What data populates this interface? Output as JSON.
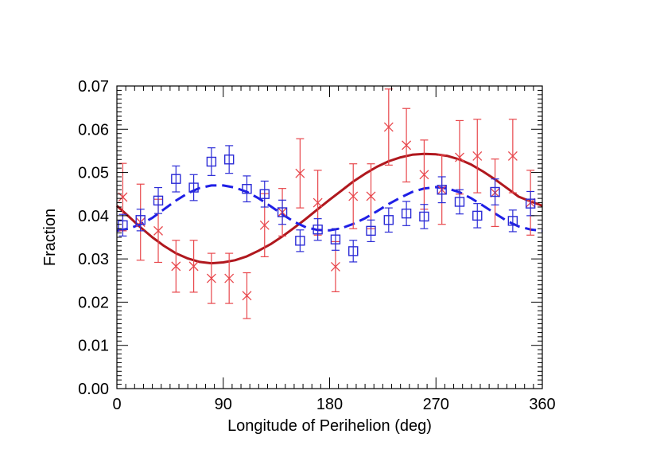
{
  "chart_data": {
    "type": "scatter",
    "title": "",
    "xlabel": "Longitude of Perihelion (deg)",
    "ylabel": "Fraction",
    "xlim": [
      0,
      360
    ],
    "ylim": [
      0,
      0.07
    ],
    "x_ticks": [
      0,
      90,
      180,
      270,
      360
    ],
    "y_ticks": [
      0.0,
      0.01,
      0.02,
      0.03,
      0.04,
      0.05,
      0.06,
      0.07
    ],
    "x_tick_labels": [
      "0",
      "90",
      "180",
      "270",
      "360"
    ],
    "y_tick_labels": [
      "0.00",
      "0.01",
      "0.02",
      "0.03",
      "0.04",
      "0.05",
      "0.06",
      "0.07"
    ],
    "grid": false,
    "colors": {
      "red_points": "#e8474c",
      "blue_points": "#2b2bd6",
      "red_curve": "#b0181e",
      "blue_curve": "#1f1fe6"
    },
    "series": [
      {
        "marker": "x",
        "color": "#e8474c",
        "points": [
          {
            "x": 5,
            "y": 0.0443,
            "err": 0.0078
          },
          {
            "x": 20,
            "y": 0.0385,
            "err": 0.0088
          },
          {
            "x": 35,
            "y": 0.0365,
            "err": 0.0073
          },
          {
            "x": 50,
            "y": 0.0283,
            "err": 0.006
          },
          {
            "x": 65,
            "y": 0.0283,
            "err": 0.006
          },
          {
            "x": 80,
            "y": 0.0255,
            "err": 0.0058
          },
          {
            "x": 95,
            "y": 0.0255,
            "err": 0.0058
          },
          {
            "x": 110,
            "y": 0.0215,
            "err": 0.0053
          },
          {
            "x": 125,
            "y": 0.0378,
            "err": 0.0073
          },
          {
            "x": 140,
            "y": 0.0408,
            "err": 0.0055
          },
          {
            "x": 155,
            "y": 0.0498,
            "err": 0.008
          },
          {
            "x": 170,
            "y": 0.043,
            "err": 0.0075
          },
          {
            "x": 185,
            "y": 0.0282,
            "err": 0.0058
          },
          {
            "x": 200,
            "y": 0.0445,
            "err": 0.0075
          },
          {
            "x": 215,
            "y": 0.0445,
            "err": 0.0075
          },
          {
            "x": 230,
            "y": 0.0605,
            "err": 0.0088
          },
          {
            "x": 245,
            "y": 0.0563,
            "err": 0.0085
          },
          {
            "x": 260,
            "y": 0.0495,
            "err": 0.008
          },
          {
            "x": 275,
            "y": 0.046,
            "err": 0.008
          },
          {
            "x": 290,
            "y": 0.0535,
            "err": 0.0085
          },
          {
            "x": 305,
            "y": 0.0538,
            "err": 0.0085
          },
          {
            "x": 320,
            "y": 0.0453,
            "err": 0.0078
          },
          {
            "x": 335,
            "y": 0.0538,
            "err": 0.0085
          },
          {
            "x": 350,
            "y": 0.043,
            "err": 0.0075
          }
        ]
      },
      {
        "marker": "square",
        "color": "#2b2bd6",
        "points": [
          {
            "x": 5,
            "y": 0.0378,
            "err": 0.0025
          },
          {
            "x": 20,
            "y": 0.039,
            "err": 0.0025
          },
          {
            "x": 35,
            "y": 0.0435,
            "err": 0.003
          },
          {
            "x": 50,
            "y": 0.0485,
            "err": 0.003
          },
          {
            "x": 65,
            "y": 0.0465,
            "err": 0.003
          },
          {
            "x": 80,
            "y": 0.0525,
            "err": 0.0032
          },
          {
            "x": 95,
            "y": 0.053,
            "err": 0.0032
          },
          {
            "x": 110,
            "y": 0.0462,
            "err": 0.003
          },
          {
            "x": 125,
            "y": 0.045,
            "err": 0.003
          },
          {
            "x": 140,
            "y": 0.0408,
            "err": 0.0028
          },
          {
            "x": 155,
            "y": 0.0342,
            "err": 0.0025
          },
          {
            "x": 170,
            "y": 0.0368,
            "err": 0.0025
          },
          {
            "x": 185,
            "y": 0.0345,
            "err": 0.0025
          },
          {
            "x": 200,
            "y": 0.0318,
            "err": 0.0025
          },
          {
            "x": 215,
            "y": 0.0365,
            "err": 0.0025
          },
          {
            "x": 230,
            "y": 0.039,
            "err": 0.0028
          },
          {
            "x": 245,
            "y": 0.0405,
            "err": 0.0028
          },
          {
            "x": 260,
            "y": 0.0398,
            "err": 0.0028
          },
          {
            "x": 275,
            "y": 0.046,
            "err": 0.003
          },
          {
            "x": 290,
            "y": 0.0432,
            "err": 0.0028
          },
          {
            "x": 305,
            "y": 0.04,
            "err": 0.0028
          },
          {
            "x": 320,
            "y": 0.0455,
            "err": 0.003
          },
          {
            "x": 335,
            "y": 0.0388,
            "err": 0.0025
          },
          {
            "x": 350,
            "y": 0.0428,
            "err": 0.0028
          }
        ]
      }
    ],
    "curves": [
      {
        "style": "solid",
        "color": "#b0181e",
        "x": [
          0,
          10,
          20,
          30,
          40,
          50,
          60,
          70,
          80,
          90,
          100,
          110,
          120,
          130,
          140,
          150,
          160,
          170,
          180,
          190,
          200,
          210,
          220,
          230,
          240,
          250,
          260,
          270,
          280,
          290,
          300,
          310,
          320,
          330,
          340,
          350,
          360
        ],
        "y": [
          0.0423,
          0.0398,
          0.0373,
          0.035,
          0.033,
          0.0313,
          0.0301,
          0.0293,
          0.029,
          0.0292,
          0.0297,
          0.0306,
          0.0319,
          0.0334,
          0.0352,
          0.0372,
          0.0393,
          0.0415,
          0.0437,
          0.0458,
          0.0479,
          0.0497,
          0.0513,
          0.0526,
          0.0535,
          0.0541,
          0.0543,
          0.0542,
          0.0538,
          0.053,
          0.0518,
          0.0502,
          0.0484,
          0.0464,
          0.0444,
          0.0433,
          0.0423
        ]
      },
      {
        "style": "dashed",
        "color": "#1f1fe6",
        "x": [
          0,
          10,
          20,
          30,
          40,
          50,
          60,
          70,
          80,
          90,
          100,
          110,
          120,
          130,
          140,
          150,
          160,
          170,
          180,
          190,
          200,
          210,
          220,
          230,
          240,
          250,
          260,
          270,
          280,
          290,
          300,
          310,
          320,
          330,
          340,
          350,
          360
        ],
        "y": [
          0.0365,
          0.037,
          0.038,
          0.0395,
          0.0415,
          0.0435,
          0.0452,
          0.0464,
          0.047,
          0.047,
          0.0465,
          0.0455,
          0.044,
          0.0422,
          0.0403,
          0.0386,
          0.0373,
          0.0367,
          0.0366,
          0.0371,
          0.0381,
          0.0394,
          0.041,
          0.0427,
          0.0442,
          0.0455,
          0.0463,
          0.0466,
          0.0463,
          0.0454,
          0.044,
          0.0423,
          0.0405,
          0.0388,
          0.0375,
          0.0368,
          0.0365
        ]
      }
    ]
  }
}
